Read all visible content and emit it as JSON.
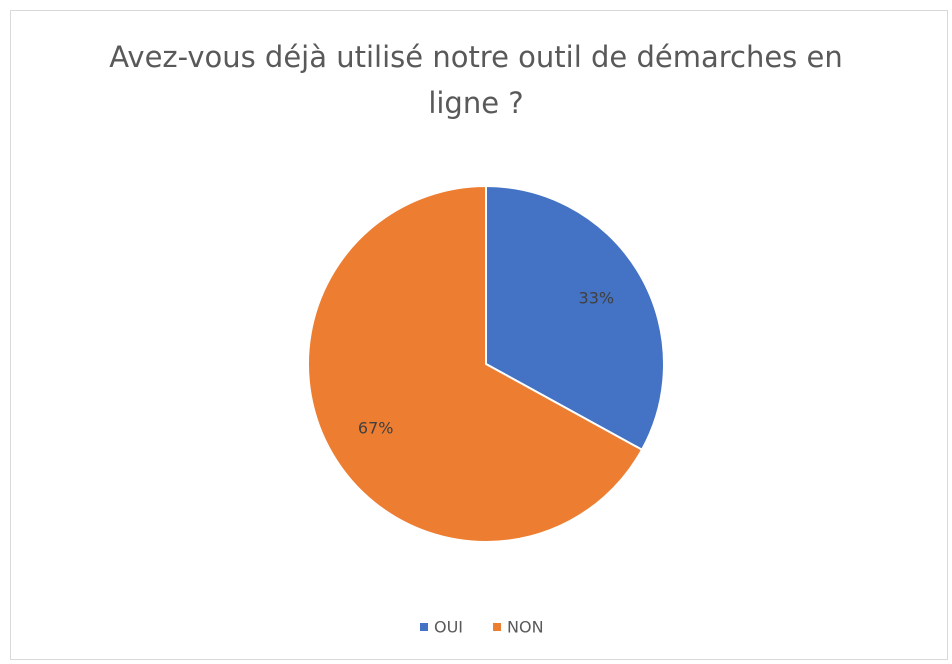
{
  "chart_data": {
    "type": "pie",
    "title": "Avez-vous déjà utilisé notre outil de démarches en ligne ?",
    "categories": [
      "OUI",
      "NON"
    ],
    "values": [
      33,
      67
    ],
    "value_labels": [
      "33%",
      "67%"
    ],
    "colors": [
      "#4472c4",
      "#ed7d31"
    ],
    "legend": "bottom"
  }
}
